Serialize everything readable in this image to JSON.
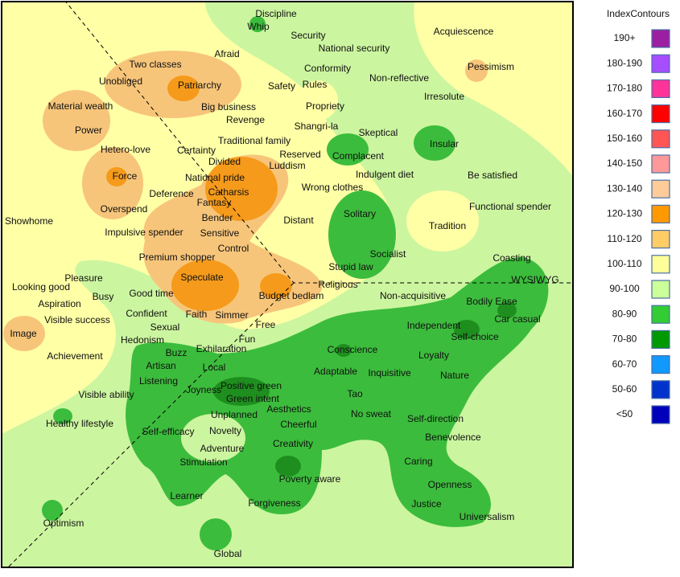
{
  "legend": {
    "title": "IndexContours",
    "items": [
      {
        "label": "190+",
        "color": "#9b1fa0"
      },
      {
        "label": "180-190",
        "color": "#a64dff"
      },
      {
        "label": "170-180",
        "color": "#ff3399"
      },
      {
        "label": "160-170",
        "color": "#ff0000"
      },
      {
        "label": "150-160",
        "color": "#ff5555"
      },
      {
        "label": "140-150",
        "color": "#ff9999"
      },
      {
        "label": "130-140",
        "color": "#ffcc99"
      },
      {
        "label": "120-130",
        "color": "#ff9900"
      },
      {
        "label": "110-120",
        "color": "#ffcc66"
      },
      {
        "label": "100-110",
        "color": "#ffff99"
      },
      {
        "label": "90-100",
        "color": "#ccff99"
      },
      {
        "label": "80-90",
        "color": "#33cc33"
      },
      {
        "label": "70-80",
        "color": "#009900"
      },
      {
        "label": "60-70",
        "color": "#1199ff"
      },
      {
        "label": "50-60",
        "color": "#0033cc"
      },
      {
        "label": "<50",
        "color": "#0000bb"
      }
    ]
  },
  "words": [
    "Discipline",
    "Whip",
    "Security",
    "Afraid",
    "National security",
    "Acquiescence",
    "Two classes",
    "Conformity",
    "Pessimism",
    "Unobliged",
    "Patriarchy",
    "Safety",
    "Rules",
    "Non-reflective",
    "Irresolute",
    "Material wealth",
    "Big business",
    "Propriety",
    "Revenge",
    "Power",
    "Shangri-la",
    "Skeptical",
    "Traditional family",
    "Insular",
    "Hetero-love",
    "Certainty",
    "Reserved",
    "Complacent",
    "Divided",
    "Luddism",
    "Force",
    "National pride",
    "Indulgent diet",
    "Be satisfied",
    "Catharsis",
    "Deference",
    "Wrong clothes",
    "Fantasy",
    "Functional spender",
    "Showhome",
    "Overspend",
    "Solitary",
    "Bender",
    "Distant",
    "Tradition",
    "Impulsive spender",
    "Sensitive",
    "Control",
    "Socialist",
    "Coasting",
    "Premium shopper",
    "Stupid law",
    "Pleasure",
    "Speculate",
    "WYSIWYG",
    "Looking good",
    "Good time",
    "Religious",
    "Busy",
    "Budget bedlam",
    "Non-acquisitive",
    "Bodily Ease",
    "Aspiration",
    "Confident",
    "Faith",
    "Simmer",
    "Car casual",
    "Visible success",
    "Free",
    "Independent",
    "Sexual",
    "Image",
    "Self-choice",
    "Hedonism",
    "Fun",
    "Exhilaration",
    "Buzz",
    "Conscience",
    "Loyalty",
    "Achievement",
    "Artisan",
    "Local",
    "Adaptable",
    "Inquisitive",
    "Nature",
    "Listening",
    "Positive green",
    "Joyness",
    "Tao",
    "Visible ability",
    "Green intent",
    "Aesthetics",
    "No sweat",
    "Unplanned",
    "Self-direction",
    "Healthy lifestyle",
    "Cheerful",
    "Self-efficacy",
    "Novelty",
    "Benevolence",
    "Creativity",
    "Adventure",
    "Stimulation",
    "Caring",
    "Poverty aware",
    "Openness",
    "Learner",
    "Forgiveness",
    "Justice",
    "Universalism",
    "Optimism",
    "Global"
  ]
}
